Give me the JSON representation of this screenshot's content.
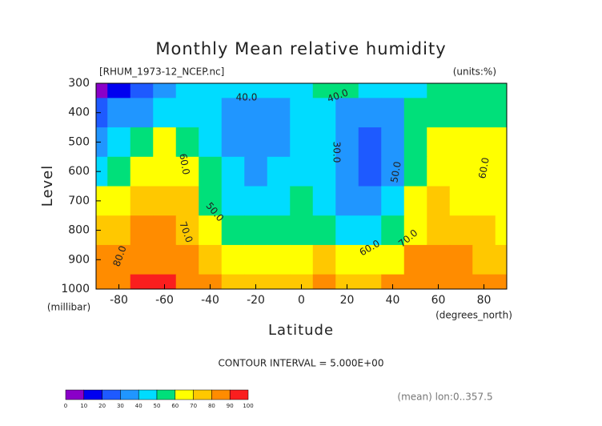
{
  "chart_data": {
    "type": "contour",
    "title": "Monthly Mean relative humidity",
    "subtitle": "[RHUM_1973-12_NCEP.nc]",
    "units": "(units:%)",
    "y_label": "Level",
    "y_units": "(millibar)",
    "x_label": "Latitude",
    "x_units": "(degrees_north)",
    "contour_interval": "CONTOUR INTERVAL = 5.000E+00",
    "footnote": "(mean) lon:0..357.5",
    "x": [
      -90,
      -80,
      -70,
      -60,
      -50,
      -40,
      -30,
      -20,
      -10,
      0,
      10,
      20,
      30,
      40,
      50,
      60,
      70,
      80,
      90
    ],
    "y": [
      300,
      400,
      500,
      600,
      700,
      800,
      900,
      1000
    ],
    "z": [
      [
        5,
        15,
        25,
        35,
        40,
        45,
        48,
        45,
        42,
        45,
        50,
        52,
        48,
        45,
        48,
        55,
        52,
        50,
        50
      ],
      [
        20,
        30,
        35,
        40,
        45,
        42,
        38,
        35,
        38,
        45,
        45,
        38,
        32,
        38,
        50,
        55,
        55,
        52,
        52
      ],
      [
        35,
        45,
        55,
        62,
        55,
        48,
        38,
        34,
        38,
        44,
        42,
        33,
        28,
        35,
        50,
        62,
        65,
        62,
        60
      ],
      [
        45,
        50,
        60,
        68,
        62,
        52,
        40,
        35,
        40,
        45,
        42,
        32,
        28,
        38,
        55,
        65,
        65,
        65,
        60
      ],
      [
        60,
        65,
        70,
        75,
        70,
        58,
        48,
        40,
        45,
        50,
        48,
        38,
        35,
        45,
        60,
        70,
        68,
        68,
        65
      ],
      [
        70,
        75,
        80,
        80,
        75,
        65,
        58,
        50,
        50,
        55,
        55,
        48,
        45,
        55,
        68,
        75,
        72,
        70,
        68
      ],
      [
        80,
        82,
        85,
        85,
        80,
        72,
        68,
        65,
        65,
        68,
        70,
        62,
        60,
        68,
        80,
        85,
        80,
        75,
        70
      ],
      [
        80,
        85,
        90,
        92,
        85,
        80,
        75,
        72,
        72,
        75,
        82,
        75,
        70,
        80,
        88,
        88,
        85,
        80,
        80
      ]
    ],
    "xlim": [
      -90,
      90
    ],
    "xticks": [
      -80,
      -60,
      -40,
      -20,
      0,
      20,
      40,
      60,
      80
    ],
    "ylim": [
      1000,
      300
    ],
    "yticks": [
      300,
      400,
      500,
      600,
      700,
      800,
      900,
      1000
    ],
    "levels": [
      0,
      10,
      20,
      30,
      40,
      50,
      60,
      70,
      80,
      90,
      100
    ],
    "colors": [
      "#8a00c8",
      "#0000f0",
      "#1e5aff",
      "#2096ff",
      "#00dcff",
      "#00e07a",
      "#ffff00",
      "#ffc800",
      "#ff8c00",
      "#fa1e1e"
    ],
    "contour_labels": [
      {
        "value": 40,
        "label": "40.0"
      },
      {
        "value": 40,
        "label": "40.0"
      },
      {
        "value": 30,
        "label": "30.0"
      },
      {
        "value": 60,
        "label": "60.0"
      },
      {
        "value": 50,
        "label": "50.0"
      },
      {
        "value": 60,
        "label": "60.0"
      },
      {
        "value": 50,
        "label": "50.0"
      },
      {
        "value": 70,
        "label": "70.0"
      },
      {
        "value": 60,
        "label": "60.0"
      },
      {
        "value": 70,
        "label": "70.0"
      },
      {
        "value": 80,
        "label": "80.0"
      }
    ]
  }
}
